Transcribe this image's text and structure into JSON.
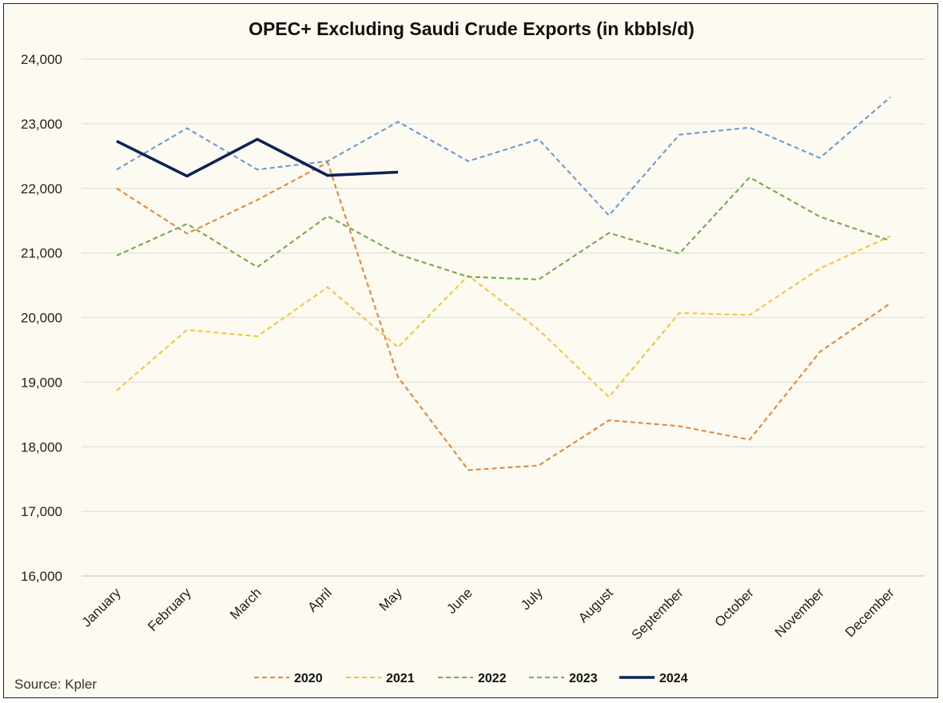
{
  "chart_data": {
    "type": "line",
    "title": "OPEC+ Excluding Saudi Crude Exports (in kbbls/d)",
    "xlabel": "",
    "ylabel": "",
    "categories": [
      "January",
      "February",
      "March",
      "April",
      "May",
      "June",
      "July",
      "August",
      "September",
      "October",
      "November",
      "December"
    ],
    "ylim": [
      16000,
      24000
    ],
    "yticks": [
      16000,
      17000,
      18000,
      19000,
      20000,
      21000,
      22000,
      23000,
      24000
    ],
    "ytick_labels": [
      "16,000",
      "17,000",
      "18,000",
      "19,000",
      "20,000",
      "21,000",
      "22,000",
      "23,000",
      "24,000"
    ],
    "grid": true,
    "legend_position": "bottom",
    "series": [
      {
        "name": "2020",
        "color": "#e0883f",
        "style": "dashed",
        "values": [
          22000,
          21300,
          21820,
          22400,
          19080,
          17640,
          17710,
          18410,
          18320,
          18110,
          19470,
          20220
        ]
      },
      {
        "name": "2021",
        "color": "#f5c443",
        "style": "dashed",
        "values": [
          18870,
          19810,
          19710,
          20470,
          19540,
          20650,
          19810,
          18770,
          20070,
          20040,
          20760,
          21260
        ]
      },
      {
        "name": "2022",
        "color": "#74a84d",
        "style": "dashed",
        "values": [
          20960,
          21450,
          20780,
          21570,
          20980,
          20630,
          20590,
          21310,
          20990,
          22170,
          21560,
          21190
        ]
      },
      {
        "name": "2023",
        "color": "#6b9bd2",
        "style": "dashed",
        "values": [
          22290,
          22930,
          22290,
          22420,
          23030,
          22420,
          22760,
          21580,
          22830,
          22940,
          22470,
          23410
        ]
      },
      {
        "name": "2024",
        "color": "#0f2257",
        "style": "solid",
        "values": [
          22730,
          22190,
          22760,
          22200,
          22250,
          null,
          null,
          null,
          null,
          null,
          null,
          null
        ]
      }
    ]
  },
  "source": "Source: Kpler"
}
